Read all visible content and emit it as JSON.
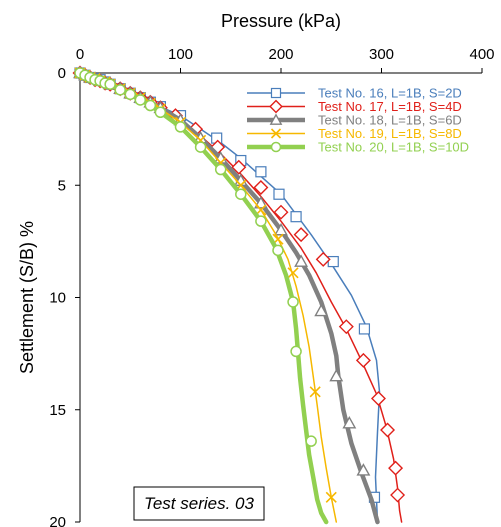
{
  "chart_data": {
    "type": "line",
    "title": "",
    "xlabel": "Pressure (kPa)",
    "ylabel": "Settlement (S/B) %",
    "xlim": [
      0,
      400
    ],
    "ylim": [
      20,
      0
    ],
    "x_axis_position": "top",
    "y_axis_inverted": true,
    "x_ticks": [
      "0",
      "100",
      "200",
      "300",
      "400"
    ],
    "y_ticks": [
      "0",
      "5",
      "10",
      "15",
      "20"
    ],
    "grid": false,
    "legend_position": "top-right",
    "annotation": "Test series. 03",
    "series": [
      {
        "name": "Test No. 16, L=1B, S=2D",
        "color": "#4a7ebb",
        "marker": "square",
        "line_width": 1.5,
        "x": [
          0,
          5,
          10,
          15,
          20,
          25,
          30,
          40,
          50,
          60,
          70,
          80,
          100,
          120,
          140,
          160,
          180,
          200,
          215,
          230,
          250,
          270,
          285,
          295,
          298,
          296,
          294,
          296
        ],
        "y": [
          0,
          0.1,
          0.2,
          0.25,
          0.3,
          0.4,
          0.5,
          0.7,
          0.9,
          1.1,
          1.3,
          1.5,
          1.9,
          2.5,
          3.1,
          3.8,
          4.6,
          5.4,
          6.3,
          7.2,
          8.5,
          9.9,
          11.3,
          12.8,
          14.2,
          16.0,
          18.0,
          20.0
        ],
        "marker_x": [
          0,
          5,
          10,
          15,
          20,
          25,
          30,
          40,
          50,
          60,
          70,
          80,
          100,
          136,
          160,
          180,
          198,
          215,
          252,
          283,
          293
        ],
        "marker_y": [
          0,
          0.1,
          0.2,
          0.25,
          0.3,
          0.4,
          0.5,
          0.7,
          0.9,
          1.1,
          1.3,
          1.5,
          1.9,
          2.9,
          3.9,
          4.4,
          5.4,
          6.4,
          8.4,
          11.4,
          18.9
        ]
      },
      {
        "name": "Test No. 17, L=1B, S=4D",
        "color": "#e0201a",
        "marker": "diamond",
        "line_width": 1.5,
        "x": [
          0,
          10,
          20,
          30,
          40,
          50,
          60,
          70,
          80,
          100,
          120,
          140,
          160,
          180,
          200,
          220,
          235,
          250,
          265,
          280,
          295,
          305,
          312,
          316,
          318,
          320
        ],
        "y": [
          0,
          0.2,
          0.35,
          0.5,
          0.7,
          0.9,
          1.1,
          1.3,
          1.55,
          2.1,
          2.8,
          3.6,
          4.5,
          5.5,
          6.6,
          7.8,
          8.9,
          10.2,
          11.4,
          12.8,
          14.3,
          15.8,
          17.2,
          18.5,
          19.5,
          20.0
        ],
        "marker_x": [
          0,
          5,
          10,
          15,
          20,
          25,
          30,
          40,
          50,
          60,
          70,
          80,
          95,
          115,
          137,
          158,
          180,
          200,
          220,
          242,
          265,
          282,
          297,
          306,
          314,
          316
        ],
        "marker_y": [
          0,
          0.1,
          0.2,
          0.3,
          0.35,
          0.45,
          0.5,
          0.7,
          0.9,
          1.1,
          1.3,
          1.55,
          1.9,
          2.5,
          3.3,
          4.2,
          5.1,
          6.2,
          7.2,
          8.3,
          11.3,
          12.8,
          14.5,
          15.9,
          17.6,
          18.8
        ]
      },
      {
        "name": "Test No. 18, L=1B, S=6D",
        "color": "#808080",
        "marker": "triangle",
        "line_width": 4.5,
        "x": [
          0,
          10,
          20,
          30,
          40,
          50,
          60,
          70,
          80,
          100,
          120,
          140,
          160,
          180,
          200,
          215,
          228,
          240,
          250,
          255,
          257,
          262,
          270,
          280,
          290,
          296
        ],
        "y": [
          0,
          0.2,
          0.35,
          0.5,
          0.7,
          0.9,
          1.1,
          1.3,
          1.55,
          2.1,
          2.9,
          3.8,
          4.8,
          5.8,
          7.0,
          8.0,
          9.0,
          10.2,
          11.6,
          12.6,
          13.5,
          15.0,
          16.5,
          17.8,
          19.0,
          20.0
        ],
        "marker_x": [
          0,
          5,
          10,
          15,
          20,
          30,
          40,
          50,
          60,
          70,
          80,
          100,
          120,
          140,
          160,
          180,
          200,
          220,
          240,
          255,
          268,
          282
        ],
        "marker_y": [
          0,
          0.1,
          0.2,
          0.25,
          0.35,
          0.5,
          0.7,
          0.9,
          1.1,
          1.3,
          1.55,
          2.1,
          2.9,
          3.8,
          4.8,
          5.8,
          7.0,
          8.4,
          10.6,
          13.5,
          15.6,
          17.7
        ]
      },
      {
        "name": "Test No. 19, L=1B, S=8D",
        "color": "#f6b800",
        "marker": "x",
        "line_width": 1.5,
        "x": [
          0,
          10,
          20,
          30,
          40,
          50,
          60,
          70,
          80,
          100,
          120,
          140,
          160,
          180,
          195,
          207,
          215,
          222,
          228,
          232,
          236,
          240,
          245,
          250,
          255
        ],
        "y": [
          0,
          0.2,
          0.35,
          0.5,
          0.7,
          0.9,
          1.1,
          1.35,
          1.6,
          2.2,
          3.0,
          4.0,
          5.0,
          6.1,
          7.2,
          8.3,
          9.5,
          10.8,
          12.2,
          13.5,
          14.8,
          16.2,
          17.6,
          18.9,
          20.0
        ],
        "marker_x": [
          0,
          5,
          10,
          15,
          20,
          25,
          30,
          40,
          50,
          60,
          70,
          80,
          100,
          120,
          140,
          160,
          180,
          197,
          212,
          234,
          250
        ],
        "marker_y": [
          0,
          0.1,
          0.2,
          0.25,
          0.35,
          0.4,
          0.5,
          0.7,
          0.9,
          1.1,
          1.35,
          1.6,
          2.2,
          3.0,
          4.0,
          5.0,
          6.1,
          7.4,
          8.9,
          14.2,
          18.9
        ]
      },
      {
        "name": "Test No. 20, L=1B, S=10D",
        "color": "#92d050",
        "marker": "circle",
        "line_width": 4.5,
        "x": [
          0,
          10,
          20,
          30,
          40,
          50,
          60,
          70,
          80,
          100,
          120,
          140,
          160,
          180,
          195,
          205,
          212,
          215,
          217,
          219,
          222,
          225,
          228,
          232,
          236,
          240,
          245
        ],
        "y": [
          0,
          0.2,
          0.35,
          0.5,
          0.75,
          0.95,
          1.2,
          1.45,
          1.75,
          2.4,
          3.3,
          4.3,
          5.4,
          6.6,
          7.8,
          9.0,
          10.2,
          11.4,
          12.5,
          13.6,
          14.8,
          15.9,
          17.0,
          18.0,
          19.0,
          19.6,
          20.0
        ],
        "marker_x": [
          0,
          5,
          10,
          15,
          20,
          25,
          30,
          40,
          50,
          60,
          70,
          80,
          100,
          120,
          140,
          160,
          180,
          197,
          212,
          215,
          230
        ],
        "marker_y": [
          0,
          0.1,
          0.2,
          0.3,
          0.35,
          0.45,
          0.5,
          0.75,
          0.95,
          1.2,
          1.45,
          1.75,
          2.4,
          3.3,
          4.3,
          5.4,
          6.6,
          7.9,
          10.2,
          12.4,
          16.4
        ]
      }
    ]
  }
}
